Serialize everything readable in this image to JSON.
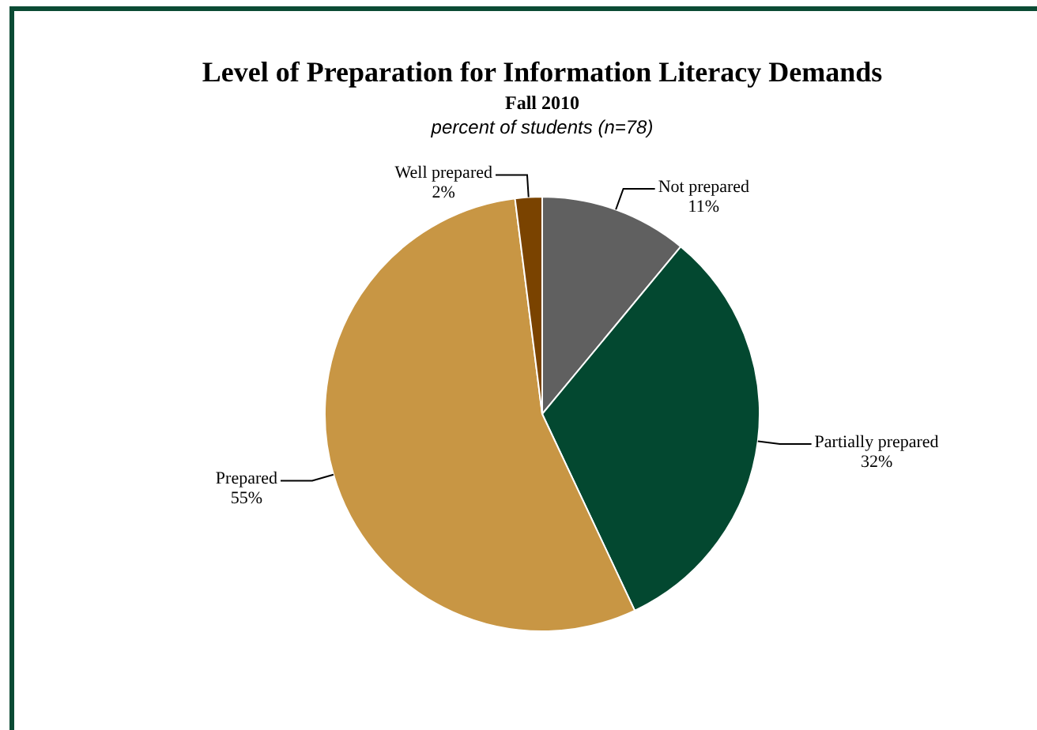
{
  "chart_data": {
    "type": "pie",
    "title": "Level of Preparation for Information Literacy Demands",
    "subtitle": "Fall 2010",
    "annotations": [
      "percent of students (n=78)"
    ],
    "categories": [
      "Not prepared",
      "Partially prepared",
      "Prepared",
      "Well prepared"
    ],
    "values": [
      11,
      32,
      55,
      2
    ],
    "colors": [
      "#606060",
      "#034830",
      "#c89644",
      "#7a4300"
    ],
    "value_labels": [
      "11%",
      "32%",
      "55%",
      "2%"
    ]
  }
}
